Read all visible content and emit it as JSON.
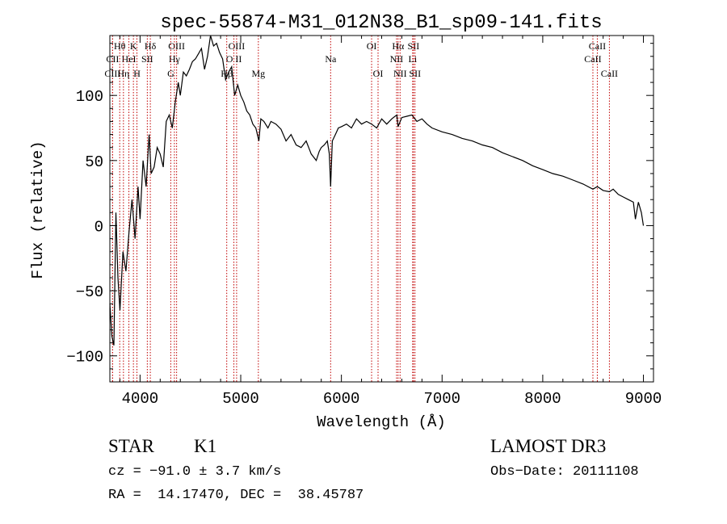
{
  "chart_data": {
    "type": "line",
    "title": "spec-55874-M31_012N38_B1_sp09-141.fits",
    "xlabel": "Wavelength (Å)",
    "ylabel": "Flux (relative)",
    "xlim": [
      3700,
      9100
    ],
    "ylim": [
      -120,
      146
    ],
    "xticks": [
      4000,
      5000,
      6000,
      7000,
      8000,
      9000
    ],
    "yticks": [
      -100,
      -50,
      0,
      50,
      100
    ],
    "series": [
      {
        "name": "flux",
        "color": "#000000",
        "x": [
          3700,
          3720,
          3740,
          3760,
          3780,
          3800,
          3830,
          3860,
          3890,
          3920,
          3950,
          3980,
          4000,
          4030,
          4060,
          4090,
          4110,
          4140,
          4170,
          4200,
          4230,
          4260,
          4290,
          4320,
          4350,
          4380,
          4400,
          4430,
          4460,
          4490,
          4520,
          4550,
          4580,
          4610,
          4640,
          4670,
          4700,
          4730,
          4760,
          4790,
          4820,
          4850,
          4880,
          4910,
          4940,
          4970,
          5000,
          5030,
          5060,
          5090,
          5120,
          5150,
          5180,
          5200,
          5230,
          5270,
          5300,
          5350,
          5400,
          5450,
          5500,
          5550,
          5600,
          5650,
          5700,
          5750,
          5780,
          5800,
          5830,
          5860,
          5880,
          5893,
          5910,
          5940,
          5970,
          6000,
          6050,
          6100,
          6150,
          6200,
          6250,
          6300,
          6350,
          6400,
          6450,
          6500,
          6550,
          6563,
          6600,
          6650,
          6700,
          6750,
          6800,
          6850,
          6900,
          7000,
          7100,
          7200,
          7300,
          7400,
          7500,
          7600,
          7700,
          7800,
          7900,
          8000,
          8100,
          8200,
          8300,
          8400,
          8498,
          8542,
          8600,
          8662,
          8700,
          8750,
          8800,
          8850,
          8900,
          8920,
          8950,
          8980,
          9000
        ],
        "values": [
          -60,
          -85,
          -92,
          10,
          -40,
          -65,
          -20,
          -35,
          -5,
          20,
          -10,
          30,
          5,
          50,
          30,
          70,
          40,
          45,
          60,
          55,
          45,
          80,
          85,
          75,
          95,
          110,
          100,
          118,
          115,
          120,
          126,
          128,
          132,
          136,
          120,
          130,
          146,
          138,
          140,
          133,
          128,
          112,
          118,
          122,
          100,
          108,
          100,
          95,
          88,
          85,
          78,
          75,
          65,
          82,
          80,
          75,
          80,
          78,
          74,
          65,
          70,
          62,
          60,
          65,
          55,
          50,
          57,
          60,
          62,
          65,
          55,
          30,
          65,
          70,
          75,
          76,
          78,
          75,
          82,
          78,
          80,
          78,
          75,
          82,
          78,
          82,
          85,
          76,
          83,
          84,
          85,
          80,
          82,
          78,
          75,
          72,
          70,
          67,
          65,
          62,
          60,
          56,
          53,
          50,
          46,
          43,
          40,
          38,
          35,
          32,
          28,
          30,
          27,
          26,
          28,
          24,
          22,
          20,
          18,
          5,
          18,
          10,
          0
        ]
      }
    ],
    "lines": [
      {
        "label": "Hθ",
        "wave": 3798,
        "row": 1
      },
      {
        "label": "K",
        "wave": 3934,
        "row": 1
      },
      {
        "label": "Hδ",
        "wave": 4102,
        "row": 1
      },
      {
        "label": "CII",
        "wave": 3727,
        "row": 2
      },
      {
        "label": "HeI",
        "wave": 3889,
        "row": 2
      },
      {
        "label": "SII",
        "wave": 4072,
        "row": 2
      },
      {
        "label": "CIII",
        "wave": 3727,
        "row": 3
      },
      {
        "label": "Hη",
        "wave": 3835,
        "row": 3
      },
      {
        "label": "H",
        "wave": 3969,
        "row": 3
      },
      {
        "label": "OIII",
        "wave": 4363,
        "row": 1
      },
      {
        "label": "Hγ",
        "wave": 4341,
        "row": 2
      },
      {
        "label": "G",
        "wave": 4305,
        "row": 3
      },
      {
        "label": "OIII",
        "wave": 4959,
        "row": 1
      },
      {
        "label": "O II",
        "wave": 4932,
        "row": 2
      },
      {
        "label": "Hβ",
        "wave": 4861,
        "row": 3
      },
      {
        "label": "Mg",
        "wave": 5175,
        "row": 3
      },
      {
        "label": "Na",
        "wave": 5893,
        "row": 2
      },
      {
        "label": "OI",
        "wave": 6300,
        "row": 1
      },
      {
        "label": "OI",
        "wave": 6364,
        "row": 3
      },
      {
        "label": "Hα",
        "wave": 6563,
        "row": 1
      },
      {
        "label": "SII",
        "wave": 6716,
        "row": 1
      },
      {
        "label": "NII",
        "wave": 6548,
        "row": 2
      },
      {
        "label": "Li",
        "wave": 6708,
        "row": 2
      },
      {
        "label": "NII",
        "wave": 6583,
        "row": 3
      },
      {
        "label": "SII",
        "wave": 6731,
        "row": 3
      },
      {
        "label": "CaII",
        "wave": 8542,
        "row": 1
      },
      {
        "label": "CaII",
        "wave": 8498,
        "row": 2
      },
      {
        "label": "CaII",
        "wave": 8662,
        "row": 3
      }
    ]
  },
  "info": {
    "class": "STAR",
    "subclass": "K1",
    "survey": "LAMOST DR3",
    "cz": "cz = −91.0 ± 3.7 km/s",
    "obsdate": "Obs−Date: 20111108",
    "radec": "RA =  14.17470, DEC =  38.45787"
  }
}
